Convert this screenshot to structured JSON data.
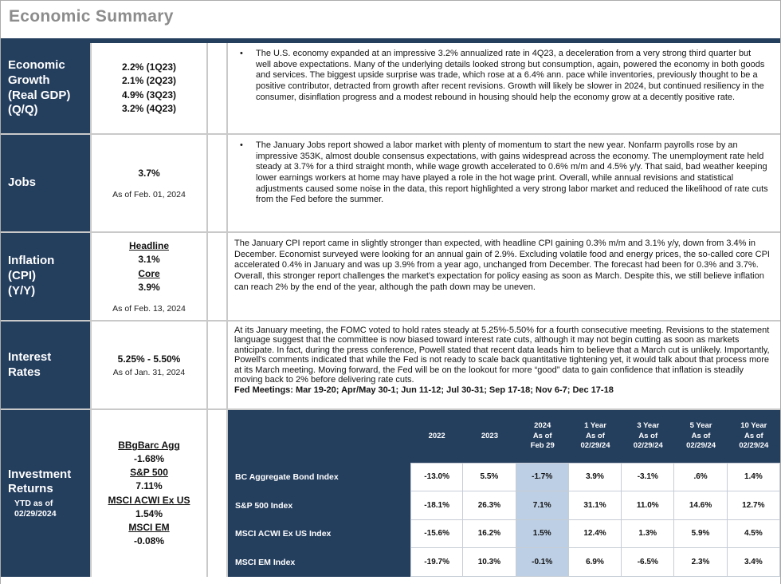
{
  "title": "Economic Summary",
  "colors": {
    "navy": "#243e5e",
    "highlight_blue": "#bdcfe5",
    "title_gray": "#8c8c8c",
    "grid_gray": "#c9c9c9"
  },
  "bullet_glyph": "•",
  "rows": [
    {
      "label": "Economic Growth\n(Real GDP)\n(Q/Q)",
      "value": "2.2% (1Q23)\n2.1% (2Q23)\n4.9% (3Q23)\n3.2% (4Q23)",
      "text": "The U.S. economy expanded at an impressive 3.2% annualized rate in 4Q23, a deceleration from a very strong third quarter but well above expectations. Many of the underlying details looked strong but consumption, again, powered the economy in both goods and services. The biggest upside surprise was trade, which rose at a 6.4% ann. pace while inventories, previously thought to be a positive contributor, detracted from growth after recent revisions. Growth will likely be slower in 2024, but continued resiliency in the consumer, disinflation progress and a modest rebound in housing should help the economy grow at a decently positive rate."
    },
    {
      "label": "Jobs",
      "value": "3.7%",
      "note": "As of Feb. 01, 2024",
      "text": "The January Jobs report showed a labor market with plenty of momentum to start the new year. Nonfarm payrolls rose by an impressive 353K, almost double consensus expectations, with gains widespread across the economy. The unemployment rate held steady at 3.7% for a third straight month, while wage growth accelerated to 0.6% m/m and 4.5% y/y. That said, bad weather keeping lower earnings workers at home may have played a role in the hot wage print. Overall, while annual revisions and statistical adjustments caused some noise in the data, this report highlighted a very strong labor market and reduced the likelihood of rate cuts from the Fed before the summer."
    },
    {
      "label": "Inflation\n(CPI)\n(Y/Y)",
      "value_lines": [
        "Headline",
        "3.1%",
        "Core",
        "3.9%"
      ],
      "note": "As of Feb. 13, 2024",
      "text": "The January CPI report came in slightly stronger than expected, with headline CPI gaining 0.3% m/m and 3.1% y/y, down from 3.4% in December.  Economist surveyed were looking for an annual gain of 2.9%. Excluding volatile food and energy prices, the so-called core CPI accelerated 0.4% in January and was up 3.9% from a year ago, unchanged from December. The forecast had been for 0.3% and 3.7%.   Overall, this stronger report challenges the market's expectation for policy easing as soon as March. Despite this, we still believe inflation can reach 2% by the end of the year, although the path down may be uneven."
    },
    {
      "label": "Interest Rates",
      "value": "5.25% - 5.50%",
      "note": "As of Jan. 31, 2024",
      "text": "At its January meeting, the FOMC voted to hold rates steady at 5.25%-5.50% for a fourth consecutive meeting. Revisions to the statement language suggest that the committee is now biased toward interest rate cuts, although it may not begin cutting as soon as markets anticipate. In fact, during the press conference, Powell stated that recent data leads him to believe that a March cut is unlikely. Importantly, Powell's comments indicated that while the Fed is not ready to scale back quantitative tightening yet, it would talk about that process more at its March meeting. Moving forward, the Fed will be on the lookout for more “good” data to gain confidence that inflation is steadily moving back to 2% before delivering rate cuts.",
      "text_bold": "Fed Meetings: Mar 19-20; Apr/May 30-1; Jun 11-12; Jul 30-31; Sep 17-18; Nov 6-7; Dec 17-18"
    },
    {
      "label": "Investment Returns",
      "label_sub": "YTD as of\n02/29/2024",
      "value_lines": [
        "BBgBarc Agg",
        "-1.68%",
        "S&P 500",
        "7.11%",
        "MSCI ACWI Ex US",
        "1.54%",
        "MSCI EM",
        "-0.08%"
      ]
    }
  ],
  "returns_table": {
    "col_headers": [
      "2022",
      "2023",
      "2024\nAs of\nFeb 29",
      "1 Year\nAs of\n02/29/24",
      "3 Year\nAs of\n02/29/24",
      "5 Year\nAs of\n02/29/24",
      "10 Year\nAs of\n02/29/24"
    ],
    "highlight_col": 2,
    "rows": [
      {
        "label": "BC Aggregate Bond Index",
        "values": [
          "-13.0%",
          "5.5%",
          "-1.7%",
          "3.9%",
          "-3.1%",
          ".6%",
          "1.4%"
        ]
      },
      {
        "label": "S&P 500 Index",
        "values": [
          "-18.1%",
          "26.3%",
          "7.1%",
          "31.1%",
          "11.0%",
          "14.6%",
          "12.7%"
        ]
      },
      {
        "label": "MSCI ACWI Ex US Index",
        "values": [
          "-15.6%",
          "16.2%",
          "1.5%",
          "12.4%",
          "1.3%",
          "5.9%",
          "4.5%"
        ]
      },
      {
        "label": "MSCI EM Index",
        "values": [
          "-19.7%",
          "10.3%",
          "-0.1%",
          "6.9%",
          "-6.5%",
          "2.3%",
          "3.4%"
        ]
      }
    ]
  }
}
